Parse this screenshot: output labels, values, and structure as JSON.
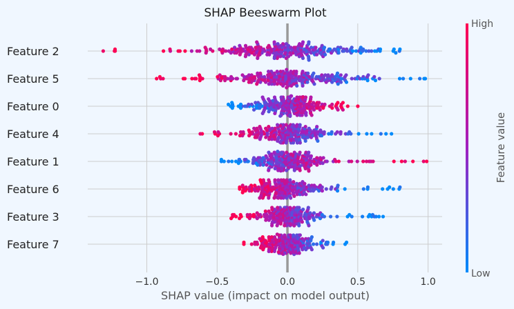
{
  "chart_data": {
    "type": "scatter",
    "title": "SHAP Beeswarm Plot",
    "xlabel": "SHAP value (impact on model output)",
    "ylabel": "",
    "xlim": [
      -1.42,
      1.1
    ],
    "xticks": [
      -1.0,
      -0.5,
      0.0,
      0.5,
      1.0
    ],
    "xtick_labels": [
      "−1.0",
      "−0.5",
      "0.0",
      "0.5",
      "1.0"
    ],
    "grid": true,
    "features": [
      {
        "name": "Feature 2",
        "min": -1.31,
        "max": 0.8,
        "dir": -1,
        "n": 260,
        "spread": 0.24
      },
      {
        "name": "Feature 5",
        "min": -0.93,
        "max": 0.98,
        "dir": -1,
        "n": 260,
        "spread": 0.26
      },
      {
        "name": "Feature 0",
        "min": -0.42,
        "max": 0.5,
        "dir": 1,
        "n": 240,
        "spread": 0.13
      },
      {
        "name": "Feature 4",
        "min": -0.62,
        "max": 0.74,
        "dir": -1,
        "n": 240,
        "spread": 0.15
      },
      {
        "name": "Feature 1",
        "min": -0.47,
        "max": 0.99,
        "dir": 1,
        "n": 240,
        "spread": 0.14
      },
      {
        "name": "Feature 6",
        "min": -0.34,
        "max": 0.8,
        "dir": -1,
        "n": 230,
        "spread": 0.12
      },
      {
        "name": "Feature 3",
        "min": -0.4,
        "max": 0.68,
        "dir": -1,
        "n": 230,
        "spread": 0.11
      },
      {
        "name": "Feature 7",
        "min": -0.31,
        "max": 0.42,
        "dir": -1,
        "n": 220,
        "spread": 0.1
      }
    ],
    "colorbar": {
      "title": "Feature value",
      "high_label": "High",
      "low_label": "Low",
      "high_color": "#ff0052",
      "low_color": "#008bfb"
    },
    "marker_colors": {
      "high": "#ff0052",
      "mid": "#a020c0",
      "low": "#008bfb"
    },
    "zero_line_color": "#999999"
  }
}
